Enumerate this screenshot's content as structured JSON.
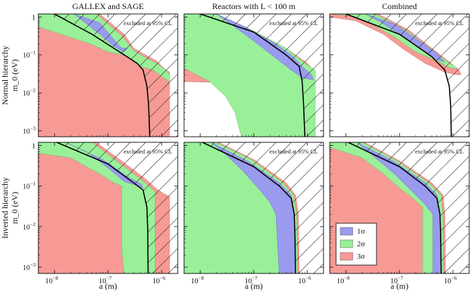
{
  "chart_data": {
    "type": "area",
    "row_labels": [
      "Normal hierarchy",
      "Inverted hierarchy"
    ],
    "column_titles": [
      "GALLEX and SAGE",
      "Reactors with L < 100 m",
      "Combined"
    ],
    "xlabel": "a (m)",
    "ylabel": "m_0 (eV)",
    "x_scale": "log",
    "y_scale": "log",
    "xlim": [
      5e-09,
      2e-06
    ],
    "ylim": [
      0.0007,
      1.2
    ],
    "x_ticks": [
      "10^-8",
      "10^-7",
      "10^-6"
    ],
    "y_ticks": [
      "1",
      "10^-1",
      "10^-2",
      "10^-3"
    ],
    "annotation": "excluded at 95% CL",
    "legend": [
      "1σ",
      "2σ",
      "3σ"
    ],
    "legend_position": "bottom-right of last panel",
    "colors": {
      "sigma1": "#9a9aee",
      "sigma2": "#99f099",
      "sigma3": "#f79a96",
      "bound": "#000000",
      "hatch": "#222222"
    },
    "panels": [
      {
        "row": "Normal hierarchy",
        "title": "GALLEX and SAGE",
        "bound": [
          [
            1e-08,
            1.2
          ],
          [
            5e-08,
            0.35
          ],
          [
            2e-07,
            0.1
          ],
          [
            3.5e-07,
            0.06
          ],
          [
            4.5e-07,
            0.04
          ],
          [
            5.3e-07,
            0.015
          ],
          [
            5.7e-07,
            0.005
          ],
          [
            6e-07,
            0.0007
          ]
        ],
        "region_3sigma": [
          [
            5e-09,
            1.2
          ],
          [
            7e-08,
            1.2
          ],
          [
            2e-07,
            0.35
          ],
          [
            3e-07,
            0.15
          ],
          [
            5e-07,
            0.1
          ],
          [
            8e-07,
            0.07
          ],
          [
            1.1e-06,
            0.045
          ],
          [
            1.4e-06,
            0.035
          ],
          [
            1.4e-06,
            0.0007
          ],
          [
            5e-09,
            0.0007
          ]
        ],
        "region_2sigma": [
          [
            5e-09,
            1.2
          ],
          [
            6e-08,
            1.2
          ],
          [
            1.8e-07,
            0.32
          ],
          [
            3e-07,
            0.13
          ],
          [
            5e-07,
            0.085
          ],
          [
            8e-07,
            0.06
          ],
          [
            1.2e-06,
            0.04
          ],
          [
            1.4e-06,
            0.03
          ],
          [
            1.4e-06,
            0.02
          ],
          [
            1.1e-06,
            0.025
          ],
          [
            7e-07,
            0.04
          ],
          [
            4e-07,
            0.05
          ],
          [
            2e-07,
            0.1
          ],
          [
            1e-07,
            0.12
          ],
          [
            5e-08,
            0.19
          ],
          [
            5e-09,
            0.55
          ]
        ],
        "region_1sigma": [
          [
            2.3e-08,
            1.2
          ],
          [
            7e-08,
            0.7
          ],
          [
            1.4e-07,
            0.22
          ],
          [
            1.8e-07,
            0.15
          ],
          [
            2.3e-07,
            0.15
          ],
          [
            1.9e-07,
            0.12
          ],
          [
            1.2e-07,
            0.18
          ],
          [
            7e-08,
            0.35
          ],
          [
            3e-08,
            0.9
          ]
        ]
      },
      {
        "row": "Normal hierarchy",
        "title": "Reactors with L < 100 m",
        "bound": [
          [
            1e-08,
            1.2
          ],
          [
            1e-07,
            0.4
          ],
          [
            4e-07,
            0.1
          ],
          [
            7e-07,
            0.05
          ],
          [
            8e-07,
            0.02
          ],
          [
            8.5e-07,
            0.005
          ],
          [
            9e-07,
            0.0007
          ]
        ],
        "region_3sigma": [
          [
            5e-09,
            1.2
          ],
          [
            2e-08,
            1.2
          ],
          [
            8e-08,
            0.5
          ],
          [
            4e-07,
            0.15
          ],
          [
            1e-06,
            0.06
          ],
          [
            1.4e-06,
            0.035
          ],
          [
            1.4e-06,
            0.02
          ],
          [
            9e-07,
            0.02
          ],
          [
            5e-07,
            0.018
          ],
          [
            2e-07,
            0.016
          ],
          [
            5e-08,
            0.018
          ],
          [
            5e-09,
            0.02
          ]
        ],
        "region_2sigma": [
          [
            5e-09,
            1.2
          ],
          [
            2e-08,
            1.2
          ],
          [
            8e-08,
            0.5
          ],
          [
            4e-07,
            0.15
          ],
          [
            9e-07,
            0.06
          ],
          [
            1.4e-06,
            0.04
          ],
          [
            1.4e-06,
            0.0007
          ],
          [
            6e-08,
            0.0007
          ],
          [
            5.5e-08,
            0.001
          ],
          [
            4.5e-08,
            0.003
          ],
          [
            3e-08,
            0.008
          ],
          [
            1.5e-08,
            0.02
          ],
          [
            5e-09,
            0.045
          ]
        ],
        "region_1sigma": [
          [
            2e-08,
            1.2
          ],
          [
            6e-08,
            0.6
          ],
          [
            2.5e-07,
            0.2
          ],
          [
            5e-07,
            0.1
          ],
          [
            8e-07,
            0.05
          ],
          [
            1.2e-06,
            0.03
          ],
          [
            1.3e-06,
            0.022
          ],
          [
            8e-07,
            0.025
          ],
          [
            5e-07,
            0.04
          ],
          [
            3e-07,
            0.07
          ],
          [
            1.5e-07,
            0.15
          ],
          [
            6e-08,
            0.4
          ]
        ]
      },
      {
        "row": "Normal hierarchy",
        "title": "Combined",
        "bound": [
          [
            1e-08,
            1.2
          ],
          [
            1e-07,
            0.35
          ],
          [
            4e-07,
            0.09
          ],
          [
            7e-07,
            0.04
          ],
          [
            8.5e-07,
            0.015
          ],
          [
            9e-07,
            0.005
          ],
          [
            9.3e-07,
            0.0007
          ]
        ],
        "region_3sigma": [
          [
            5e-09,
            1.2
          ],
          [
            4e-08,
            1.2
          ],
          [
            1.5e-07,
            0.45
          ],
          [
            4e-07,
            0.15
          ],
          [
            8e-07,
            0.07
          ],
          [
            1.3e-06,
            0.04
          ],
          [
            1.4e-06,
            0.03
          ],
          [
            1.2e-06,
            0.03
          ],
          [
            7e-07,
            0.035
          ],
          [
            3e-07,
            0.06
          ],
          [
            1.2e-07,
            0.14
          ],
          [
            5e-08,
            0.35
          ],
          [
            1.5e-08,
            0.8
          ],
          [
            5e-09,
            1.0
          ]
        ],
        "region_2sigma": [
          [
            5e-09,
            1.2
          ],
          [
            3.5e-08,
            1.2
          ],
          [
            1.3e-07,
            0.45
          ],
          [
            4e-07,
            0.14
          ],
          [
            8e-07,
            0.065
          ],
          [
            1.2e-06,
            0.045
          ],
          [
            9e-07,
            0.045
          ],
          [
            5e-07,
            0.07
          ],
          [
            2e-07,
            0.12
          ],
          [
            8e-08,
            0.3
          ],
          [
            2.5e-08,
            0.75
          ],
          [
            1.2e-08,
            1.1
          ]
        ],
        "region_1sigma": [
          [
            2.3e-08,
            1.2
          ],
          [
            8e-08,
            0.65
          ],
          [
            2.5e-07,
            0.22
          ],
          [
            5e-07,
            0.11
          ],
          [
            7e-07,
            0.065
          ],
          [
            5e-07,
            0.075
          ],
          [
            2.5e-07,
            0.14
          ],
          [
            1e-07,
            0.35
          ],
          [
            4e-08,
            0.8
          ]
        ]
      },
      {
        "row": "Inverted hierarchy",
        "title": "GALLEX and SAGE",
        "bound": [
          [
            1.1e-08,
            1.2
          ],
          [
            1e-07,
            0.35
          ],
          [
            3e-07,
            0.12
          ],
          [
            4.5e-07,
            0.08
          ],
          [
            5.3e-07,
            0.03
          ],
          [
            5.5e-07,
            0.008
          ],
          [
            5.6e-07,
            0.0007
          ]
        ],
        "region_3sigma": [
          [
            5e-09,
            1.2
          ],
          [
            6e-08,
            1.2
          ],
          [
            2.5e-07,
            0.3
          ],
          [
            5e-07,
            0.15
          ],
          [
            8e-07,
            0.085
          ],
          [
            1.1e-06,
            0.065
          ],
          [
            1.4e-06,
            0.055
          ],
          [
            1.4e-06,
            0.0007
          ],
          [
            5e-09,
            0.0007
          ]
        ],
        "region_2sigma": [
          [
            5e-09,
            1.2
          ],
          [
            5e-08,
            1.2
          ],
          [
            2e-07,
            0.3
          ],
          [
            4e-07,
            0.15
          ],
          [
            7e-07,
            0.08
          ],
          [
            7.5e-07,
            0.07
          ],
          [
            7.5e-07,
            0.0007
          ],
          [
            2e-07,
            0.0007
          ],
          [
            1.8e-07,
            0.003
          ],
          [
            1.8e-07,
            0.1
          ],
          [
            1.3e-07,
            0.12
          ],
          [
            8e-08,
            0.18
          ],
          [
            4e-08,
            0.3
          ],
          [
            2e-08,
            0.5
          ],
          [
            5e-09,
            0.65
          ]
        ],
        "region_1sigma": [
          [
            1.6e-08,
            1.2
          ],
          [
            8e-08,
            0.45
          ],
          [
            2.5e-07,
            0.16
          ],
          [
            4.2e-07,
            0.11
          ],
          [
            4.5e-07,
            0.09
          ],
          [
            3e-07,
            0.11
          ],
          [
            2e-07,
            0.13
          ],
          [
            1e-07,
            0.28
          ],
          [
            4e-08,
            0.7
          ]
        ]
      },
      {
        "row": "Inverted hierarchy",
        "title": "Reactors with L < 100 m",
        "bound": [
          [
            1.1e-08,
            1.2
          ],
          [
            1e-07,
            0.3
          ],
          [
            3e-07,
            0.1
          ],
          [
            5e-07,
            0.05
          ],
          [
            5.7e-07,
            0.02
          ],
          [
            5.9e-07,
            0.005
          ],
          [
            6e-07,
            0.0007
          ]
        ],
        "region_3sigma": [
          [
            5e-09,
            1.2
          ],
          [
            2.2e-08,
            1.2
          ],
          [
            1e-07,
            0.45
          ],
          [
            4e-07,
            0.12
          ],
          [
            6e-07,
            0.06
          ],
          [
            6.8e-07,
            0.02
          ],
          [
            7e-07,
            0.0007
          ],
          [
            5e-09,
            0.0007
          ]
        ],
        "region_2sigma": [
          [
            5e-09,
            1.2
          ],
          [
            2e-08,
            1.2
          ],
          [
            9e-08,
            0.45
          ],
          [
            3.5e-07,
            0.12
          ],
          [
            5.5e-07,
            0.06
          ],
          [
            6.3e-07,
            0.02
          ],
          [
            6.5e-07,
            0.0007
          ],
          [
            5e-09,
            0.0007
          ]
        ],
        "region_1sigma": [
          [
            1.6e-08,
            1.2
          ],
          [
            8e-08,
            0.4
          ],
          [
            3e-07,
            0.12
          ],
          [
            5e-07,
            0.06
          ],
          [
            5.8e-07,
            0.02
          ],
          [
            6e-07,
            0.0007
          ],
          [
            3e-07,
            0.0007
          ],
          [
            2.8e-07,
            0.003
          ],
          [
            2.6e-07,
            0.02
          ],
          [
            2e-07,
            0.04
          ],
          [
            1.2e-07,
            0.09
          ],
          [
            6e-08,
            0.25
          ],
          [
            3e-08,
            0.6
          ]
        ]
      },
      {
        "row": "Inverted hierarchy",
        "title": "Combined",
        "bound": [
          [
            1.1e-08,
            1.2
          ],
          [
            1e-07,
            0.3
          ],
          [
            3e-07,
            0.1
          ],
          [
            5e-07,
            0.05
          ],
          [
            5.7e-07,
            0.02
          ],
          [
            5.9e-07,
            0.005
          ],
          [
            6e-07,
            0.0007
          ]
        ],
        "region_3sigma": [
          [
            5e-09,
            1.2
          ],
          [
            2.2e-08,
            1.2
          ],
          [
            1e-07,
            0.42
          ],
          [
            4e-07,
            0.12
          ],
          [
            6.5e-07,
            0.06
          ],
          [
            7e-07,
            0.02
          ],
          [
            7.2e-07,
            0.0007
          ],
          [
            5e-09,
            0.0007
          ]
        ],
        "region_2sigma": [
          [
            5e-09,
            1.2
          ],
          [
            2e-08,
            1.2
          ],
          [
            9e-08,
            0.42
          ],
          [
            3.5e-07,
            0.12
          ],
          [
            6e-07,
            0.06
          ],
          [
            6.4e-07,
            0.02
          ],
          [
            6.6e-07,
            0.0007
          ],
          [
            2.7e-07,
            0.0007
          ],
          [
            2.7e-07,
            0.03
          ],
          [
            1.8e-07,
            0.05
          ],
          [
            1e-07,
            0.09
          ],
          [
            5e-08,
            0.2
          ],
          [
            2e-08,
            0.5
          ],
          [
            5e-09,
            0.9
          ]
        ],
        "region_1sigma": [
          [
            1.6e-08,
            1.2
          ],
          [
            8e-08,
            0.4
          ],
          [
            3e-07,
            0.12
          ],
          [
            5e-07,
            0.06
          ],
          [
            5.7e-07,
            0.02
          ],
          [
            5.9e-07,
            0.0007
          ],
          [
            4.2e-07,
            0.0007
          ],
          [
            4.2e-07,
            0.02
          ],
          [
            3e-07,
            0.035
          ],
          [
            1.8e-07,
            0.07
          ],
          [
            8e-08,
            0.2
          ],
          [
            3e-08,
            0.6
          ]
        ]
      }
    ]
  }
}
